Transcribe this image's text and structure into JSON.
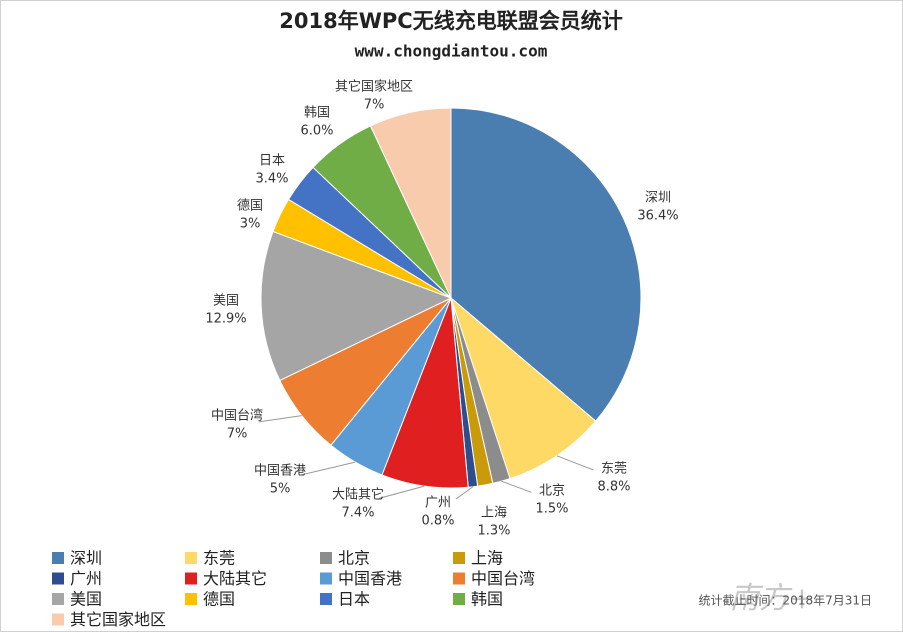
{
  "chart_data": {
    "type": "pie",
    "title": "2018年WPC无线充电联盟会员统计",
    "subtitle": "www.chongdiantou.com",
    "note": "统计截止时间：2018年7月31日",
    "watermark": "南方+",
    "categories": [
      "深圳",
      "东莞",
      "北京",
      "上海",
      "广州",
      "大陆其它",
      "中国香港",
      "中国台湾",
      "美国",
      "德国",
      "日本",
      "韩国",
      "其它国家地区"
    ],
    "values": [
      36.4,
      8.8,
      1.5,
      1.3,
      0.8,
      7.4,
      5,
      7,
      12.9,
      3,
      3.4,
      6.0,
      7
    ],
    "value_labels": [
      "36.4%",
      "8.8%",
      "1.5%",
      "1.3%",
      "0.8%",
      "7.4%",
      "5%",
      "7%",
      "12.9%",
      "3%",
      "3.4%",
      "6.0%",
      "7%"
    ],
    "colors": [
      "#4a7eb0",
      "#ffd966",
      "#8c8c8c",
      "#c99a0a",
      "#2e4d8f",
      "#e02020",
      "#5b9bd5",
      "#ed7d31",
      "#a5a5a5",
      "#ffc000",
      "#4472c4",
      "#70ad47",
      "#f8cbad"
    ],
    "legend": "bottom"
  }
}
